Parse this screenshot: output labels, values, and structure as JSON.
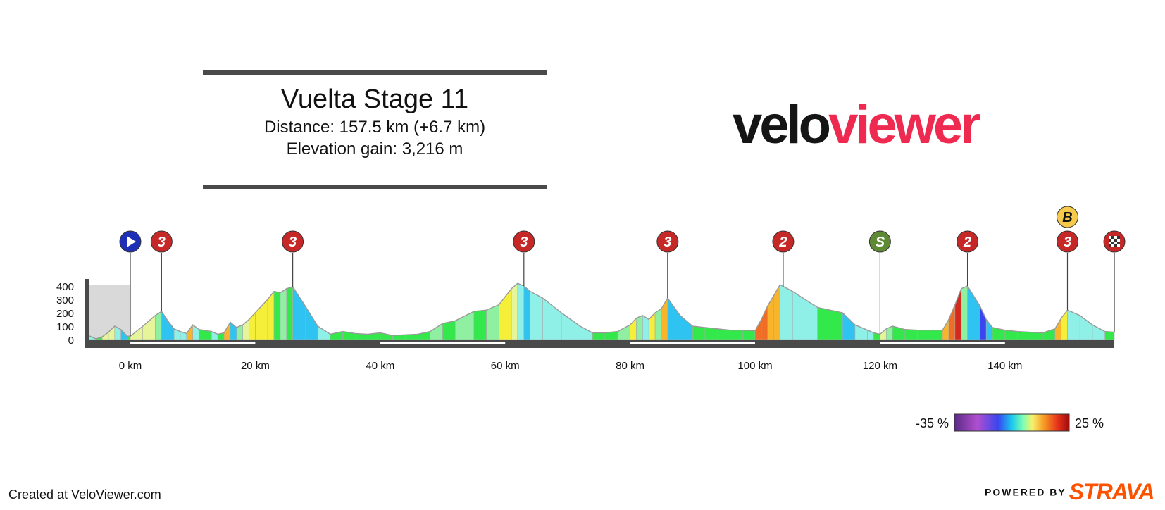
{
  "header": {
    "title": "Vuelta Stage 11",
    "distance_line": "Distance: 157.5 km (+6.7 km)",
    "elevation_line": "Elevation gain: 3,216 m"
  },
  "brand": {
    "part1": "velo",
    "part2": "viewer"
  },
  "footer": {
    "created": "Created at VeloViewer.com",
    "powered": "POWERED BY",
    "strava": "STRAVA"
  },
  "colors": {
    "brand_black": "#151515",
    "brand_red": "#ef2a51",
    "strava": "#fc5200",
    "climb_marker": "#c62828",
    "sprint_marker": "#5d8a33",
    "start_marker": "#1f2fb5",
    "bonus_marker": "#f6c94a"
  },
  "chart_data": {
    "type": "area",
    "xlabel": "",
    "ylabel": "",
    "x_ticks": [
      0,
      20,
      40,
      60,
      80,
      100,
      120,
      140
    ],
    "x_tick_labels": [
      "0 km",
      "20 km",
      "40 km",
      "60 km",
      "80 km",
      "100 km",
      "120 km",
      "140 km"
    ],
    "y_ticks": [
      0,
      100,
      200,
      300,
      400
    ],
    "y_tick_labels": [
      "0",
      "100",
      "200",
      "300",
      "400"
    ],
    "xlim": [
      -6.7,
      157.5
    ],
    "ylim": [
      0,
      400
    ],
    "neutral_zone_km": [
      -6.7,
      0
    ],
    "elevation_profile": [
      [
        -6.7,
        30
      ],
      [
        -5.5,
        5
      ],
      [
        -4.5,
        20
      ],
      [
        -3.5,
        55
      ],
      [
        -2.5,
        100
      ],
      [
        -1.5,
        75
      ],
      [
        -0.5,
        25
      ],
      [
        0,
        25
      ],
      [
        2,
        100
      ],
      [
        4,
        180
      ],
      [
        5,
        210
      ],
      [
        6,
        140
      ],
      [
        7,
        80
      ],
      [
        8,
        60
      ],
      [
        9,
        45
      ],
      [
        10,
        110
      ],
      [
        11,
        75
      ],
      [
        13,
        60
      ],
      [
        14,
        40
      ],
      [
        15,
        50
      ],
      [
        16,
        130
      ],
      [
        17,
        90
      ],
      [
        18,
        110
      ],
      [
        19,
        150
      ],
      [
        20,
        200
      ],
      [
        22,
        300
      ],
      [
        23,
        360
      ],
      [
        24,
        350
      ],
      [
        25,
        380
      ],
      [
        26,
        395
      ],
      [
        28,
        250
      ],
      [
        30,
        100
      ],
      [
        32,
        40
      ],
      [
        34,
        60
      ],
      [
        36,
        45
      ],
      [
        38,
        40
      ],
      [
        40,
        50
      ],
      [
        42,
        30
      ],
      [
        44,
        35
      ],
      [
        46,
        40
      ],
      [
        48,
        60
      ],
      [
        50,
        120
      ],
      [
        52,
        140
      ],
      [
        55,
        210
      ],
      [
        57,
        220
      ],
      [
        59,
        260
      ],
      [
        61,
        380
      ],
      [
        62,
        420
      ],
      [
        63,
        400
      ],
      [
        64,
        360
      ],
      [
        66,
        310
      ],
      [
        69,
        200
      ],
      [
        72,
        100
      ],
      [
        74,
        50
      ],
      [
        76,
        50
      ],
      [
        78,
        60
      ],
      [
        80,
        110
      ],
      [
        81,
        160
      ],
      [
        82,
        180
      ],
      [
        83,
        150
      ],
      [
        84,
        200
      ],
      [
        85,
        230
      ],
      [
        86,
        310
      ],
      [
        88,
        180
      ],
      [
        90,
        100
      ],
      [
        92,
        90
      ],
      [
        94,
        80
      ],
      [
        96,
        70
      ],
      [
        98,
        70
      ],
      [
        100,
        65
      ],
      [
        101,
        150
      ],
      [
        102,
        250
      ],
      [
        103,
        330
      ],
      [
        104,
        410
      ],
      [
        106,
        360
      ],
      [
        110,
        240
      ],
      [
        114,
        200
      ],
      [
        116,
        110
      ],
      [
        118,
        70
      ],
      [
        119,
        50
      ],
      [
        120,
        40
      ],
      [
        121,
        80
      ],
      [
        122,
        100
      ],
      [
        124,
        75
      ],
      [
        126,
        70
      ],
      [
        128,
        70
      ],
      [
        130,
        70
      ],
      [
        131,
        150
      ],
      [
        132,
        260
      ],
      [
        133,
        380
      ],
      [
        134,
        400
      ],
      [
        136,
        250
      ],
      [
        137,
        150
      ],
      [
        138,
        90
      ],
      [
        140,
        70
      ],
      [
        142,
        60
      ],
      [
        144,
        55
      ],
      [
        146,
        50
      ],
      [
        148,
        80
      ],
      [
        149,
        160
      ],
      [
        150,
        220
      ],
      [
        152,
        180
      ],
      [
        154,
        110
      ],
      [
        156,
        60
      ],
      [
        157.5,
        55
      ]
    ],
    "markers": [
      {
        "type": "start",
        "km": 0,
        "label": ""
      },
      {
        "type": "climb",
        "km": 5,
        "label": "3"
      },
      {
        "type": "climb",
        "km": 26,
        "label": "3"
      },
      {
        "type": "climb",
        "km": 63,
        "label": "3"
      },
      {
        "type": "climb",
        "km": 86,
        "label": "3"
      },
      {
        "type": "climb",
        "km": 104.5,
        "label": "2"
      },
      {
        "type": "sprint",
        "km": 120,
        "label": "S"
      },
      {
        "type": "climb",
        "km": 134,
        "label": "2"
      },
      {
        "type": "climb",
        "km": 150,
        "label": "3",
        "bonus": "B"
      },
      {
        "type": "finish",
        "km": 157.5,
        "label": ""
      }
    ],
    "gradient_legend": {
      "min_label": "-35 %",
      "max_label": "25 %"
    }
  }
}
